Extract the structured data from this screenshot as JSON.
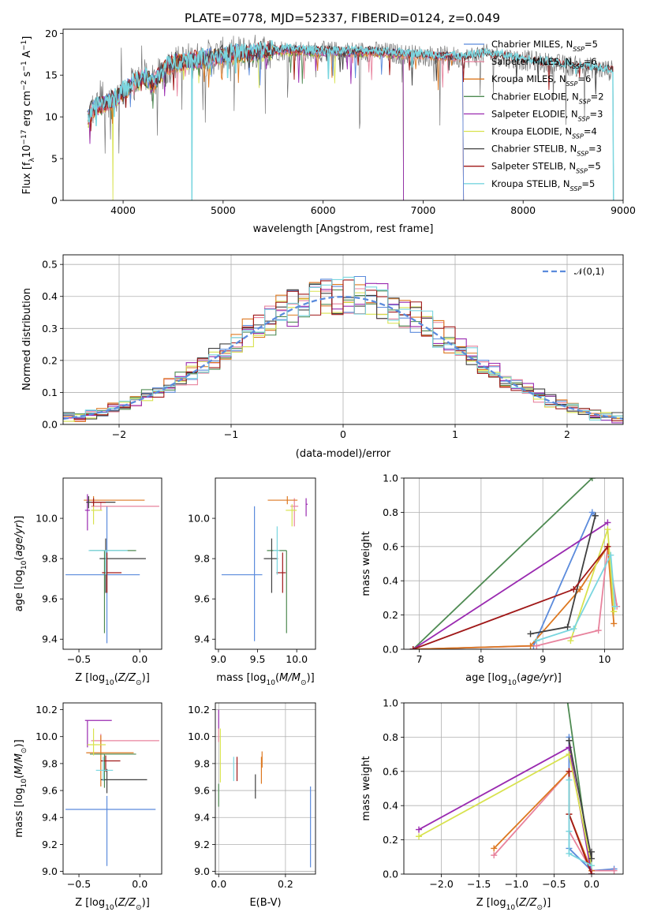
{
  "title": "PLATE=0778, MJD=52337, FIBERID=0124, z=0.049",
  "colors": {
    "chabrier_miles": "#5b8bdc",
    "salpeter_miles": "#e8839d",
    "kroupa_miles": "#dd7820",
    "chabrier_elodie": "#4e8a52",
    "salpeter_elodie": "#9a2ab0",
    "kroupa_elodie": "#d8e24e",
    "chabrier_stelib": "#404040",
    "salpeter_stelib": "#a01818",
    "kroupa_stelib": "#7ad6df",
    "gauss": "#5b8bdc",
    "grid": "#b0b0b0"
  },
  "chart_data": [
    {
      "id": "spectrum",
      "type": "line",
      "xlabel": "wavelength [Angstrom, rest frame]",
      "ylabel": "Flux [f_λ10^-17 erg cm^-2 s^-1 A^-1]",
      "xlim": [
        3400,
        9000
      ],
      "ylim": [
        0,
        20.5
      ],
      "xticks": [
        "4000",
        "5000",
        "6000",
        "7000",
        "8000",
        "9000"
      ],
      "yticks": [
        "0",
        "5",
        "10",
        "15",
        "20"
      ],
      "grid": false,
      "legend_position": "upper right",
      "legend": [
        "Chabrier MILES, N_SSP=5",
        "Salpeter MILES, N_SSP=6",
        "Kroupa MILES, N_SSP=6",
        "Chabrier ELODIE, N_SSP=2",
        "Salpeter ELODIE, N_SSP=3",
        "Kroupa ELODIE, N_SSP=4",
        "Chabrier STELIB, N_SSP=3",
        "Salpeter STELIB, N_SSP=5",
        "Kroupa STELIB, N_SSP=5"
      ],
      "continuum": {
        "x": [
          3650,
          3700,
          3800,
          3900,
          4000,
          4100,
          4200,
          4300,
          4400,
          4500,
          4700,
          4900,
          5100,
          5300,
          5500,
          5700,
          5900,
          6100,
          6300,
          6500,
          6700,
          6900,
          7100,
          7300,
          7400,
          7600,
          7800,
          8000,
          8200,
          8400,
          8600,
          8800,
          8900
        ],
        "y": [
          10.0,
          11.0,
          11.5,
          12.0,
          13.0,
          14.0,
          14.8,
          14.0,
          15.5,
          16.5,
          16.8,
          17.2,
          17.5,
          17.7,
          18.0,
          18.0,
          17.8,
          17.8,
          17.8,
          17.8,
          17.6,
          17.4,
          17.3,
          17.2,
          17.0,
          17.5,
          17.2,
          16.8,
          16.5,
          16.2,
          16.0,
          15.7,
          15.5
        ]
      },
      "miles_cutoff": 7400,
      "elodie_cutoff": 6800
    },
    {
      "id": "residuals",
      "type": "histogram",
      "xlabel": "(data-model)/error",
      "ylabel": "Normed distribution",
      "xlim": [
        -2.5,
        2.5
      ],
      "ylim": [
        0,
        0.53
      ],
      "xticks": [
        "−2",
        "−1",
        "0",
        "1",
        "2"
      ],
      "yticks": [
        "0.0",
        "0.1",
        "0.2",
        "0.3",
        "0.4",
        "0.5"
      ],
      "grid": true,
      "legend_position": "upper right",
      "legend": [
        "𝒩(0,1)"
      ],
      "bin_width": 0.1
    },
    {
      "id": "age_vs_Z",
      "type": "errorbar",
      "xlabel": "Z [log10(Z/Z⊙)]",
      "ylabel": "age  [log10(age/yr)]",
      "xlim": [
        -0.63,
        0.18
      ],
      "ylim": [
        9.35,
        10.2
      ],
      "xticks": [
        "−0.5",
        "0.0"
      ],
      "yticks": [
        "9.4",
        "9.6",
        "9.8",
        "10.0"
      ],
      "grid": false,
      "points": [
        {
          "color": "chabrier_miles",
          "x": -0.27,
          "xerr": [
            0.34,
            0.27
          ],
          "y": 9.72,
          "yerr": [
            0.34,
            0.34
          ]
        },
        {
          "color": "salpeter_miles",
          "x": -0.32,
          "xerr": [
            0.08,
            0.48
          ],
          "y": 10.06,
          "yerr": [
            0.02,
            0.02
          ]
        },
        {
          "color": "kroupa_miles",
          "x": -0.38,
          "xerr": [
            0.08,
            0.42
          ],
          "y": 10.09,
          "yerr": [
            0.02,
            0.02
          ]
        },
        {
          "color": "chabrier_elodie",
          "x": -0.29,
          "xerr": [
            0.12,
            0.26
          ],
          "y": 9.84,
          "yerr": [
            0.41,
            0.0
          ]
        },
        {
          "color": "salpeter_elodie",
          "x": -0.43,
          "xerr": [
            0.02,
            0.02
          ],
          "y": 10.04,
          "yerr": [
            0.1,
            0.08
          ]
        },
        {
          "color": "kroupa_elodie",
          "x": -0.38,
          "xerr": [
            0.02,
            0.07
          ],
          "y": 10.04,
          "yerr": [
            0.07,
            0.03
          ]
        },
        {
          "color": "chabrier_stelib",
          "x": -0.28,
          "xerr": [
            0.05,
            0.33
          ],
          "y": 9.8,
          "yerr": [
            0.17,
            0.1
          ]
        },
        {
          "color": "salpeter_stelib",
          "x": -0.27,
          "xerr": [
            0.04,
            0.12
          ],
          "y": 9.73,
          "yerr": [
            0.1,
            0.1
          ]
        },
        {
          "color": "kroupa_stelib",
          "x": -0.28,
          "xerr": [
            0.14,
            0.18
          ],
          "y": 9.84,
          "yerr": [
            0.12,
            0.0
          ]
        },
        {
          "color": "chabrier_stelib",
          "x": -0.42,
          "xerr": [
            0.02,
            0.22
          ],
          "y": 10.08,
          "yerr": [
            0.03,
            0.03
          ]
        },
        {
          "color": "salpeter_stelib",
          "x": -0.38,
          "xerr": [
            0.02,
            0.1
          ],
          "y": 10.08,
          "yerr": [
            0.02,
            0.02
          ]
        }
      ]
    },
    {
      "id": "age_vs_mass",
      "type": "errorbar",
      "xlabel": "mass [log10(M/M⊙)]",
      "ylabel": "",
      "xlim": [
        8.96,
        10.24
      ],
      "ylim": [
        9.35,
        10.2
      ],
      "xticks": [
        "9.0",
        "9.5",
        "10.0"
      ],
      "yticks": [
        "9.4",
        "9.6",
        "9.8",
        "10.0"
      ],
      "grid": false,
      "points": [
        {
          "color": "chabrier_miles",
          "x": 9.46,
          "xerr": [
            0.42,
            0.1
          ],
          "y": 9.72,
          "yerr": [
            0.33,
            0.34
          ]
        },
        {
          "color": "salpeter_miles",
          "x": 9.97,
          "xerr": [
            0.05,
            0.05
          ],
          "y": 10.06,
          "yerr": [
            0.1,
            0.04
          ]
        },
        {
          "color": "kroupa_miles",
          "x": 9.88,
          "xerr": [
            0.25,
            0.13
          ],
          "y": 10.09,
          "yerr": [
            0.02,
            0.02
          ]
        },
        {
          "color": "chabrier_elodie",
          "x": 9.87,
          "xerr": [
            0.25,
            0.0
          ],
          "y": 9.84,
          "yerr": [
            0.41,
            0.0
          ]
        },
        {
          "color": "salpeter_elodie",
          "x": 10.12,
          "xerr": [
            0.0,
            0.02
          ],
          "y": 10.07,
          "yerr": [
            0.06,
            0.03
          ]
        },
        {
          "color": "kroupa_elodie",
          "x": 9.94,
          "xerr": [
            0.08,
            0.06
          ],
          "y": 10.04,
          "yerr": [
            0.08,
            0.03
          ]
        },
        {
          "color": "chabrier_stelib",
          "x": 9.68,
          "xerr": [
            0.1,
            0.08
          ],
          "y": 9.8,
          "yerr": [
            0.17,
            0.1
          ]
        },
        {
          "color": "salpeter_stelib",
          "x": 9.82,
          "xerr": [
            0.08,
            0.04
          ],
          "y": 9.73,
          "yerr": [
            0.1,
            0.1
          ]
        },
        {
          "color": "kroupa_stelib",
          "x": 9.75,
          "xerr": [
            0.05,
            0.03
          ],
          "y": 9.84,
          "yerr": [
            0.12,
            0.12
          ]
        }
      ]
    },
    {
      "id": "massweight_vs_age",
      "type": "line",
      "xlabel": "age  [log10(age/yr)]",
      "ylabel": "mass weight",
      "xlim": [
        6.75,
        10.3
      ],
      "ylim": [
        0,
        1.0
      ],
      "xticks": [
        "7",
        "8",
        "9",
        "10"
      ],
      "yticks": [
        "0.0",
        "0.2",
        "0.4",
        "0.6",
        "0.8",
        "1.0"
      ],
      "grid": true,
      "series": [
        {
          "color": "chabrier_miles",
          "x": [
            6.9,
            8.85,
            9.8,
            9.85
          ],
          "y": [
            0.0,
            0.02,
            0.8,
            0.78
          ]
        },
        {
          "color": "salpeter_miles",
          "x": [
            6.9,
            8.9,
            9.9,
            10.05,
            10.2
          ],
          "y": [
            0.0,
            0.02,
            0.11,
            0.6,
            0.25
          ]
        },
        {
          "color": "kroupa_miles",
          "x": [
            6.9,
            8.8,
            9.6,
            10.05,
            10.15
          ],
          "y": [
            0.0,
            0.02,
            0.35,
            0.6,
            0.15
          ]
        },
        {
          "color": "chabrier_elodie",
          "x": [
            6.9,
            9.8
          ],
          "y": [
            0.0,
            1.0
          ]
        },
        {
          "color": "salpeter_elodie",
          "x": [
            6.9,
            10.05
          ],
          "y": [
            0.0,
            0.74
          ]
        },
        {
          "color": "kroupa_elodie",
          "x": [
            9.45,
            10.05,
            10.15
          ],
          "y": [
            0.05,
            0.7,
            0.22
          ]
        },
        {
          "color": "chabrier_stelib",
          "x": [
            8.8,
            9.4,
            9.85
          ],
          "y": [
            0.09,
            0.13,
            0.78
          ]
        },
        {
          "color": "salpeter_stelib",
          "x": [
            6.9,
            9.5,
            10.05
          ],
          "y": [
            0.0,
            0.35,
            0.6
          ]
        },
        {
          "color": "kroupa_stelib",
          "x": [
            8.9,
            9.5,
            10.1,
            10.17
          ],
          "y": [
            0.05,
            0.12,
            0.55,
            0.25
          ]
        }
      ]
    },
    {
      "id": "mass_vs_Z",
      "type": "errorbar",
      "xlabel": "Z [log10(Z/Z⊙)]",
      "ylabel": "mass [log10(M/M⊙)]",
      "xlim": [
        -0.63,
        0.18
      ],
      "ylim": [
        8.98,
        10.25
      ],
      "xticks": [
        "−0.5",
        "0.0"
      ],
      "yticks": [
        "9.0",
        "9.2",
        "9.4",
        "9.6",
        "9.8",
        "10.0",
        "10.2"
      ],
      "grid": false,
      "points": [
        {
          "color": "chabrier_miles",
          "x": -0.27,
          "xerr": [
            0.34,
            0.4
          ],
          "y": 9.46,
          "yerr": [
            0.42,
            0.1
          ]
        },
        {
          "color": "salpeter_miles",
          "x": -0.32,
          "xerr": [
            0.08,
            0.48
          ],
          "y": 9.97,
          "yerr": [
            0.05,
            0.05
          ]
        },
        {
          "color": "kroupa_miles",
          "x": -0.32,
          "xerr": [
            0.12,
            0.27
          ],
          "y": 9.88,
          "yerr": [
            0.25,
            0.13
          ]
        },
        {
          "color": "chabrier_elodie",
          "x": -0.29,
          "xerr": [
            0.12,
            0.26
          ],
          "y": 9.87,
          "yerr": [
            0.25,
            0.0
          ]
        },
        {
          "color": "salpeter_elodie",
          "x": -0.43,
          "xerr": [
            0.02,
            0.2
          ],
          "y": 10.12,
          "yerr": [
            0.2,
            0.0
          ]
        },
        {
          "color": "kroupa_elodie",
          "x": -0.38,
          "xerr": [
            0.05,
            0.1
          ],
          "y": 9.94,
          "yerr": [
            0.08,
            0.12
          ]
        },
        {
          "color": "chabrier_stelib",
          "x": -0.27,
          "xerr": [
            0.05,
            0.33
          ],
          "y": 9.68,
          "yerr": [
            0.1,
            0.08
          ]
        },
        {
          "color": "salpeter_stelib",
          "x": -0.28,
          "xerr": [
            0.04,
            0.12
          ],
          "y": 9.82,
          "yerr": [
            0.08,
            0.04
          ]
        },
        {
          "color": "kroupa_stelib",
          "x": -0.3,
          "xerr": [
            0.06,
            0.08
          ],
          "y": 9.75,
          "yerr": [
            0.08,
            0.1
          ]
        }
      ]
    },
    {
      "id": "mass_vs_ebv",
      "type": "errorbar",
      "xlabel": "E(B-V)",
      "ylabel": "",
      "xlim": [
        -0.01,
        0.29
      ],
      "ylim": [
        8.98,
        10.25
      ],
      "xticks": [
        "0.0",
        "0.2"
      ],
      "yticks": [
        "9.0",
        "9.2",
        "9.4",
        "9.6",
        "9.8",
        "10.0",
        "10.2"
      ],
      "grid": true,
      "points": [
        {
          "color": "chabrier_miles",
          "x": 0.275,
          "xerr": [
            0.0,
            0.0
          ],
          "y": 9.33,
          "yerr": [
            0.3,
            0.3
          ]
        },
        {
          "color": "salpeter_miles",
          "x": 0.0,
          "xerr": [
            0.0,
            0.0
          ],
          "y": 10.06,
          "yerr": [
            0.1,
            0.0
          ]
        },
        {
          "color": "kroupa_miles",
          "x": 0.128,
          "xerr": [
            0.0,
            0.0
          ],
          "y": 9.75,
          "yerr": [
            0.1,
            0.1
          ]
        },
        {
          "color": "chabrier_elodie",
          "x": 0.0,
          "xerr": [
            0.0,
            0.0
          ],
          "y": 9.65,
          "yerr": [
            0.17,
            0.0
          ]
        },
        {
          "color": "salpeter_elodie",
          "x": 0.0,
          "xerr": [
            0.0,
            0.0
          ],
          "y": 10.13,
          "yerr": [
            0.07,
            0.07
          ]
        },
        {
          "color": "kroupa_elodie",
          "x": 0.005,
          "xerr": [
            0.0,
            0.0
          ],
          "y": 9.86,
          "yerr": [
            0.2,
            0.2
          ]
        },
        {
          "color": "chabrier_stelib",
          "x": 0.11,
          "xerr": [
            0.0,
            0.0
          ],
          "y": 9.63,
          "yerr": [
            0.09,
            0.09
          ]
        },
        {
          "color": "salpeter_stelib",
          "x": 0.055,
          "xerr": [
            0.0,
            0.0
          ],
          "y": 9.76,
          "yerr": [
            0.09,
            0.09
          ]
        },
        {
          "color": "kroupa_stelib",
          "x": 0.045,
          "xerr": [
            0.0,
            0.0
          ],
          "y": 9.76,
          "yerr": [
            0.09,
            0.09
          ]
        },
        {
          "color": "kroupa_miles",
          "x": 0.13,
          "xerr": [
            0.0,
            0.0
          ],
          "y": 9.83,
          "yerr": [
            0.06,
            0.06
          ]
        }
      ]
    },
    {
      "id": "massweight_vs_Z",
      "type": "line",
      "xlabel": "Z [log10(Z/Z⊙)]",
      "ylabel": "mass weight",
      "xlim": [
        -2.5,
        0.42
      ],
      "ylim": [
        0,
        1.0
      ],
      "xticks": [
        "−2.0",
        "−1.5",
        "−1.0",
        "−0.5",
        "0.0"
      ],
      "yticks": [
        "0.0",
        "0.2",
        "0.4",
        "0.6",
        "0.8",
        "1.0"
      ],
      "grid": true,
      "series": [
        {
          "color": "chabrier_miles",
          "x": [
            -0.3,
            -0.3,
            0.0,
            0.3
          ],
          "y": [
            0.8,
            0.15,
            0.02,
            0.03
          ]
        },
        {
          "color": "salpeter_miles",
          "x": [
            -1.3,
            -0.3,
            -0.3,
            0.0,
            0.3
          ],
          "y": [
            0.11,
            0.6,
            0.25,
            0.02,
            0.02
          ]
        },
        {
          "color": "kroupa_miles",
          "x": [
            -1.3,
            -0.3,
            -0.3,
            0.0
          ],
          "y": [
            0.15,
            0.6,
            0.35,
            0.02
          ]
        },
        {
          "color": "chabrier_elodie",
          "x": [
            -0.35,
            0.0
          ],
          "y": [
            1.1,
            0.0
          ]
        },
        {
          "color": "salpeter_elodie",
          "x": [
            -2.3,
            -0.3,
            0.0
          ],
          "y": [
            0.26,
            0.74,
            0.0
          ]
        },
        {
          "color": "kroupa_elodie",
          "x": [
            -2.3,
            -0.3,
            0.0
          ],
          "y": [
            0.22,
            0.7,
            0.05
          ]
        },
        {
          "color": "chabrier_stelib",
          "x": [
            -0.3,
            0.0,
            0.0
          ],
          "y": [
            0.78,
            0.09,
            0.13
          ]
        },
        {
          "color": "salpeter_stelib",
          "x": [
            -0.3,
            -0.3,
            0.0
          ],
          "y": [
            0.6,
            0.35,
            0.0
          ]
        },
        {
          "color": "kroupa_stelib",
          "x": [
            -0.3,
            -0.3,
            -0.3,
            0.0
          ],
          "y": [
            0.55,
            0.25,
            0.12,
            0.05
          ]
        }
      ]
    }
  ]
}
